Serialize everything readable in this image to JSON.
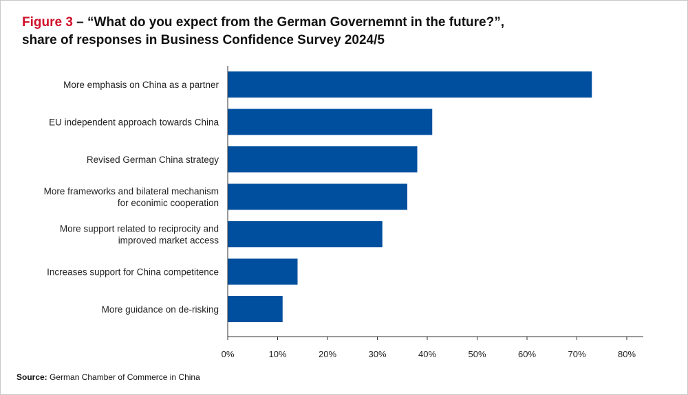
{
  "header": {
    "figure_label": "Figure 3",
    "title_rest": " – “What do you expect from the German Governemnt in the future?”,",
    "subtitle": "share of responses in Business Confidence Survey 2024/5"
  },
  "colors": {
    "bar": "#004f9f",
    "figure_label": "#d0112b"
  },
  "chart_data": {
    "type": "bar",
    "orientation": "horizontal",
    "categories": [
      [
        "More emphasis on China as a partner"
      ],
      [
        "EU independent approach towards China"
      ],
      [
        "Revised German China strategy"
      ],
      [
        "More frameworks and bilateral mechanism",
        "for econimic cooperation"
      ],
      [
        "More support related to reciprocity and",
        "improved market access"
      ],
      [
        "Increases support for China competitence"
      ],
      [
        "More guidance on de-risking"
      ]
    ],
    "values": [
      73,
      41,
      38,
      36,
      31,
      14,
      11
    ],
    "xlim": [
      0,
      80
    ],
    "xticks": [
      0,
      10,
      20,
      30,
      40,
      50,
      60,
      70,
      80
    ],
    "tick_labels": [
      "0%",
      "10%",
      "20%",
      "30%",
      "40%",
      "50%",
      "60%",
      "70%",
      "80%"
    ],
    "grid": false
  },
  "footer": {
    "source_label": "Source:",
    "source_text": " German Chamber of Commerce in China"
  }
}
